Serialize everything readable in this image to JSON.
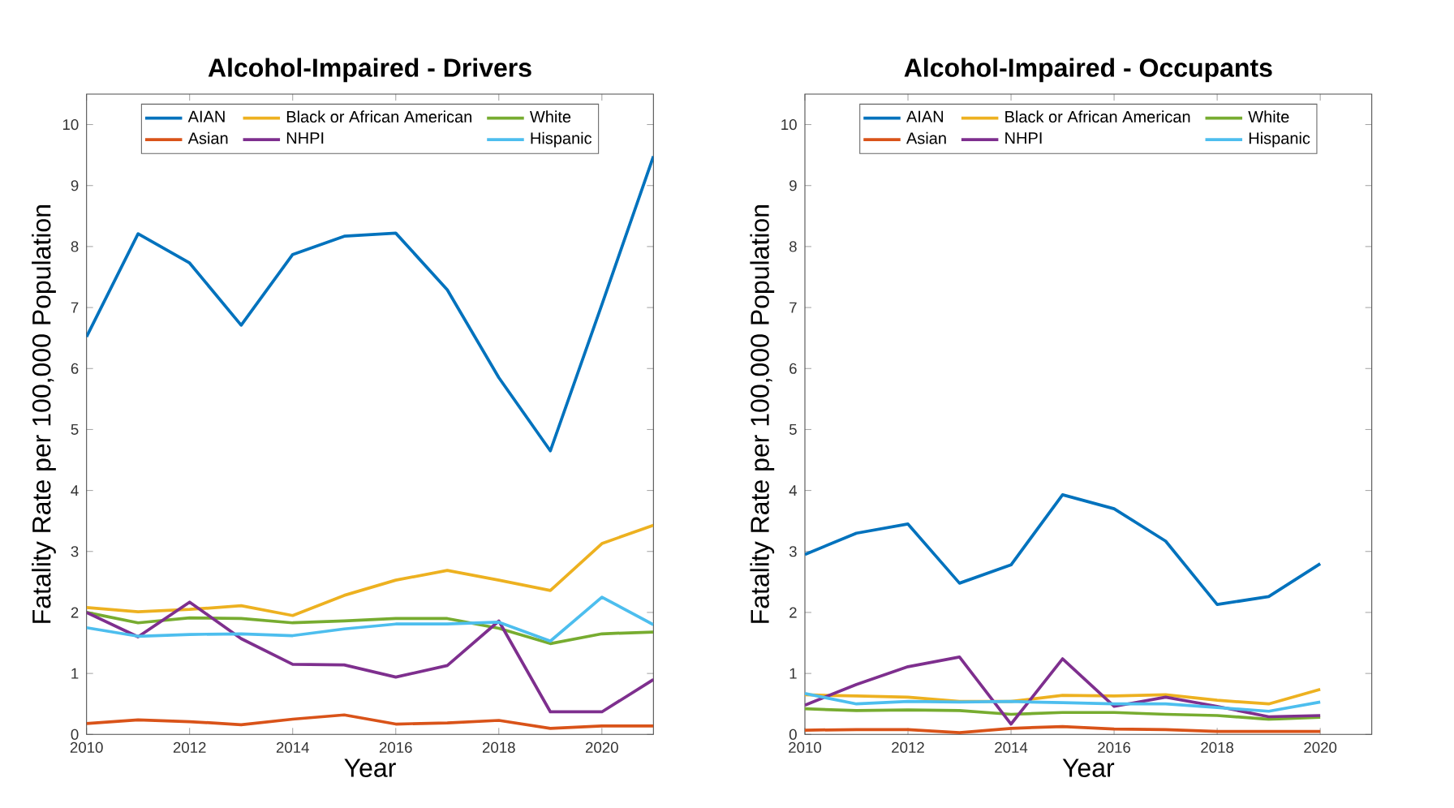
{
  "chart_data": [
    {
      "type": "line",
      "title": "Alcohol-Impaired - Drivers",
      "xlabel": "Year",
      "ylabel": "Fatality Rate per 100,000 Population",
      "x": [
        2010,
        2011,
        2012,
        2013,
        2014,
        2015,
        2016,
        2017,
        2018,
        2019,
        2020,
        2021
      ],
      "xlim": [
        2010,
        2021
      ],
      "xticks": [
        2010,
        2012,
        2014,
        2016,
        2018,
        2020
      ],
      "ylim": [
        0,
        10.5
      ],
      "yticks": [
        0,
        1,
        2,
        3,
        4,
        5,
        6,
        7,
        8,
        9,
        10
      ],
      "legend": "top",
      "grid": false,
      "series": [
        {
          "name": "AIAN",
          "color": "#0072bd",
          "values": [
            6.52,
            8.21,
            7.73,
            6.71,
            7.87,
            8.17,
            8.22,
            7.29,
            5.85,
            4.65,
            7.05,
            9.48
          ]
        },
        {
          "name": "Black or African American",
          "color": "#edb120",
          "values": [
            2.08,
            2.01,
            2.05,
            2.11,
            1.95,
            2.28,
            2.53,
            2.69,
            2.53,
            2.36,
            3.13,
            3.43
          ]
        },
        {
          "name": "White",
          "color": "#77ac30",
          "values": [
            2.0,
            1.83,
            1.91,
            1.9,
            1.83,
            1.86,
            1.9,
            1.9,
            1.74,
            1.49,
            1.65,
            1.68
          ]
        },
        {
          "name": "Asian",
          "color": "#d95319",
          "values": [
            0.18,
            0.24,
            0.21,
            0.16,
            0.25,
            0.32,
            0.17,
            0.19,
            0.23,
            0.1,
            0.14,
            0.14
          ]
        },
        {
          "name": "NHPI",
          "color": "#7e2f8e",
          "values": [
            2.0,
            1.6,
            2.17,
            1.57,
            1.15,
            1.14,
            0.94,
            1.13,
            1.86,
            0.37,
            0.37,
            0.9
          ]
        },
        {
          "name": "Hispanic",
          "color": "#4dbeee",
          "values": [
            1.75,
            1.61,
            1.64,
            1.65,
            1.62,
            1.73,
            1.81,
            1.81,
            1.84,
            1.53,
            2.25,
            1.8
          ]
        }
      ]
    },
    {
      "type": "line",
      "title": "Alcohol-Impaired - Occupants",
      "xlabel": "Year",
      "ylabel": "Fatality Rate per 100,000 Population",
      "x": [
        2010,
        2011,
        2012,
        2013,
        2014,
        2015,
        2016,
        2017,
        2018,
        2019,
        2020
      ],
      "xlim": [
        2010,
        2021
      ],
      "xticks": [
        2010,
        2012,
        2014,
        2016,
        2018,
        2020
      ],
      "ylim": [
        0,
        10.5
      ],
      "yticks": [
        0,
        1,
        2,
        3,
        4,
        5,
        6,
        7,
        8,
        9,
        10
      ],
      "legend": "top",
      "grid": false,
      "series": [
        {
          "name": "AIAN",
          "color": "#0072bd",
          "values": [
            2.95,
            3.3,
            3.45,
            2.48,
            2.78,
            3.93,
            3.7,
            3.17,
            2.13,
            2.26,
            2.8
          ]
        },
        {
          "name": "Black or African American",
          "color": "#edb120",
          "values": [
            0.65,
            0.63,
            0.61,
            0.54,
            0.54,
            0.64,
            0.63,
            0.65,
            0.56,
            0.5,
            0.74
          ]
        },
        {
          "name": "White",
          "color": "#77ac30",
          "values": [
            0.42,
            0.39,
            0.4,
            0.39,
            0.33,
            0.36,
            0.36,
            0.33,
            0.31,
            0.25,
            0.28
          ]
        },
        {
          "name": "Asian",
          "color": "#d95319",
          "values": [
            0.07,
            0.08,
            0.08,
            0.03,
            0.1,
            0.13,
            0.09,
            0.08,
            0.05,
            0.05,
            0.05
          ]
        },
        {
          "name": "NHPI",
          "color": "#7e2f8e",
          "values": [
            0.48,
            0.82,
            1.11,
            1.27,
            0.17,
            1.24,
            0.46,
            0.61,
            0.46,
            0.29,
            0.31
          ]
        },
        {
          "name": "Hispanic",
          "color": "#4dbeee",
          "values": [
            0.67,
            0.5,
            0.54,
            0.53,
            0.54,
            0.52,
            0.5,
            0.5,
            0.44,
            0.38,
            0.53
          ]
        }
      ]
    }
  ]
}
